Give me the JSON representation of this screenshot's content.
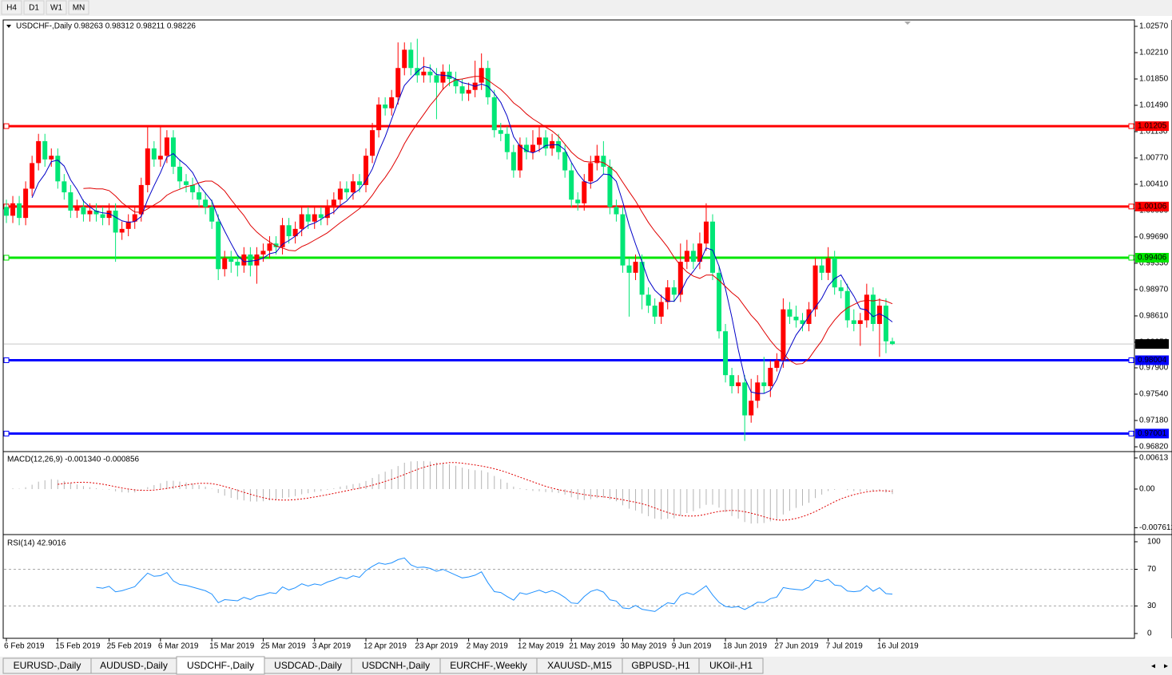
{
  "toolbar": {
    "timeframes": [
      "H4",
      "D1",
      "W1",
      "MN"
    ]
  },
  "chart_data": {
    "type": "candlestick",
    "title": "USDCHF-,Daily  0.98263 0.98312 0.98211 0.98226",
    "up_color": "#ff0000",
    "down_color": "#00e676",
    "open": [
      1.001,
      0.9998,
      1.0015,
      0.9995,
      1.0035,
      1.007,
      1.01,
      1.0075,
      1.008,
      1.0045,
      1.003,
      1.0005,
      1.001,
      1.0,
      1.0005,
      1.0,
      0.9995,
      1.0005,
      0.9975,
      0.998,
      0.999,
      1.0,
      1.004,
      1.009,
      1.0075,
      1.008,
      1.0105,
      1.0065,
      1.0045,
      1.004,
      1.003,
      1.002,
      1.001,
      0.999,
      0.9925,
      0.994,
      0.9935,
      0.993,
      0.9945,
      0.993,
      0.9945,
      0.995,
      0.996,
      0.9955,
      0.9985,
      0.997,
      0.998,
      1.0,
      0.999,
      1.0,
      0.9995,
      1.001,
      1.002,
      1.0035,
      1.003,
      1.0045,
      1.004,
      1.008,
      1.0115,
      1.015,
      1.0145,
      1.016,
      1.02,
      1.0225,
      1.02,
      1.019,
      1.0195,
      1.019,
      1.018,
      1.0195,
      1.0185,
      1.0175,
      1.0165,
      1.017,
      1.018,
      1.02,
      1.016,
      1.0115,
      1.011,
      1.0085,
      1.006,
      1.0095,
      1.0085,
      1.0095,
      1.0105,
      1.009,
      1.01,
      1.0085,
      1.006,
      1.002,
      1.0015,
      1.0045,
      1.007,
      1.008,
      1.0065,
      1.001,
      1.0,
      0.993,
      0.992,
      0.9935,
      0.989,
      0.9875,
      0.986,
      0.988,
      0.99,
      0.989,
      0.9935,
      0.995,
      0.9935,
      0.996,
      0.999,
      0.992,
      0.984,
      0.978,
      0.9765,
      0.977,
      0.9725,
      0.9745,
      0.977,
      0.9765,
      0.979,
      0.98,
      0.987,
      0.986,
      0.9855,
      0.985,
      0.987,
      0.993,
      0.992,
      0.994,
      0.99,
      0.9895,
      0.9855,
      0.985,
      0.9855,
      0.989,
      0.985,
      0.9875,
      0.98263
    ],
    "high": [
      1.002,
      1.0025,
      1.0025,
      1.0045,
      1.008,
      1.011,
      1.011,
      1.009,
      1.009,
      1.0055,
      1.004,
      1.002,
      1.002,
      1.0015,
      1.0015,
      1.001,
      1.0015,
      1.0015,
      0.999,
      1.0,
      1.001,
      1.005,
      1.012,
      1.01,
      1.012,
      1.0115,
      1.0115,
      1.0075,
      1.0055,
      1.005,
      1.004,
      1.003,
      1.002,
      1.0,
      0.995,
      0.995,
      0.9945,
      0.9955,
      0.9955,
      0.9955,
      0.996,
      0.997,
      0.997,
      0.9995,
      0.9995,
      0.999,
      1.001,
      1.001,
      1.001,
      1.001,
      1.002,
      1.003,
      1.0045,
      1.0045,
      1.0055,
      1.0055,
      1.009,
      1.0125,
      1.016,
      1.016,
      1.017,
      1.0235,
      1.0235,
      1.0235,
      1.024,
      1.0215,
      1.0205,
      1.02,
      1.0205,
      1.0205,
      1.0195,
      1.0185,
      1.018,
      1.021,
      1.022,
      1.021,
      1.017,
      1.0125,
      1.012,
      1.0095,
      1.0105,
      1.0105,
      1.0115,
      1.012,
      1.0115,
      1.011,
      1.011,
      1.0095,
      1.007,
      1.003,
      1.0055,
      1.008,
      1.0095,
      1.01,
      1.0075,
      1.002,
      1.001,
      0.994,
      0.9945,
      0.9945,
      0.99,
      0.9885,
      0.989,
      0.991,
      0.991,
      0.996,
      0.9965,
      0.996,
      0.9975,
      1.0015,
      1.0,
      0.993,
      0.985,
      0.979,
      0.978,
      0.978,
      0.9775,
      0.978,
      0.9805,
      0.98,
      0.981,
      0.9885,
      0.988,
      0.9875,
      0.9865,
      0.988,
      0.994,
      0.994,
      0.9955,
      0.995,
      0.991,
      0.9905,
      0.987,
      0.9865,
      0.9905,
      0.99,
      0.9885,
      0.9885,
      0.98312
    ],
    "low": [
      0.9988,
      0.9988,
      0.9985,
      0.9985,
      1.0025,
      1.006,
      1.0065,
      1.0065,
      1.0035,
      1.002,
      0.9995,
      0.9995,
      0.999,
      0.999,
      0.999,
      0.9985,
      0.9985,
      0.9935,
      0.9965,
      0.997,
      0.998,
      0.999,
      1.003,
      1.0065,
      1.0065,
      1.007,
      1.0055,
      1.0035,
      1.003,
      1.002,
      1.001,
      1.0,
      0.998,
      0.991,
      0.9915,
      0.992,
      0.9915,
      0.992,
      0.9915,
      0.9905,
      0.9935,
      0.994,
      0.9945,
      0.9945,
      0.996,
      0.996,
      0.997,
      0.998,
      0.998,
      0.9985,
      0.9985,
      1.0,
      1.001,
      1.002,
      1.002,
      1.003,
      1.003,
      1.007,
      1.0105,
      1.0135,
      1.0135,
      1.015,
      1.019,
      1.019,
      1.018,
      1.018,
      1.018,
      1.013,
      1.017,
      1.0175,
      1.0165,
      1.0155,
      1.0155,
      1.016,
      1.017,
      1.015,
      1.0105,
      1.01,
      1.0075,
      1.005,
      1.005,
      1.0075,
      1.0075,
      1.0085,
      1.008,
      1.008,
      1.0075,
      1.005,
      1.001,
      1.0005,
      1.0005,
      1.0035,
      1.006,
      1.0055,
      1.0,
      0.999,
      0.992,
      0.986,
      0.991,
      0.987,
      0.9865,
      0.985,
      0.985,
      0.987,
      0.988,
      0.988,
      0.9925,
      0.9925,
      0.9925,
      0.995,
      0.991,
      0.983,
      0.977,
      0.9755,
      0.9755,
      0.969,
      0.9715,
      0.9735,
      0.9755,
      0.975,
      0.9785,
      0.979,
      0.985,
      0.9845,
      0.984,
      0.984,
      0.986,
      0.991,
      0.991,
      0.989,
      0.9885,
      0.9845,
      0.984,
      0.982,
      0.9845,
      0.984,
      0.9805,
      0.981,
      0.98211
    ],
    "close": [
      0.9998,
      1.0015,
      0.9995,
      1.0035,
      1.007,
      1.01,
      1.0075,
      1.008,
      1.0045,
      1.003,
      1.0005,
      1.001,
      1.0,
      1.0005,
      1.0,
      0.9995,
      1.0005,
      0.9975,
      0.998,
      0.999,
      1.0,
      1.004,
      1.009,
      1.0075,
      1.008,
      1.0105,
      1.0065,
      1.0045,
      1.004,
      1.003,
      1.002,
      1.001,
      0.999,
      0.9925,
      0.994,
      0.9935,
      0.993,
      0.9945,
      0.993,
      0.9945,
      0.995,
      0.996,
      0.9955,
      0.9985,
      0.997,
      0.998,
      1.0,
      0.999,
      1.0,
      0.9995,
      1.001,
      1.002,
      1.0035,
      1.003,
      1.0045,
      1.004,
      1.008,
      1.0115,
      1.015,
      1.0145,
      1.016,
      1.02,
      1.0225,
      1.02,
      1.019,
      1.0195,
      1.019,
      1.018,
      1.0195,
      1.0185,
      1.0175,
      1.0165,
      1.017,
      1.018,
      1.02,
      1.016,
      1.0115,
      1.011,
      1.0085,
      1.006,
      1.0095,
      1.0085,
      1.0095,
      1.0105,
      1.009,
      1.01,
      1.0085,
      1.006,
      1.002,
      1.0015,
      1.0045,
      1.007,
      1.008,
      1.0065,
      1.001,
      1.0,
      0.993,
      0.992,
      0.9935,
      0.989,
      0.9875,
      0.986,
      0.988,
      0.99,
      0.989,
      0.9935,
      0.995,
      0.9935,
      0.996,
      0.999,
      0.992,
      0.984,
      0.978,
      0.9765,
      0.977,
      0.9725,
      0.9745,
      0.977,
      0.9765,
      0.979,
      0.98,
      0.987,
      0.986,
      0.9855,
      0.985,
      0.987,
      0.993,
      0.992,
      0.994,
      0.99,
      0.9895,
      0.9855,
      0.985,
      0.9855,
      0.989,
      0.985,
      0.9875,
      0.98263,
      0.98226
    ],
    "moving_averages": [
      {
        "period": 5,
        "color": "#0000c8"
      },
      {
        "period": 13,
        "color": "#e00000"
      }
    ],
    "ylim": [
      0.9682,
      1.0257
    ],
    "yticks": [
      {
        "value": 1.0257,
        "label": "1.02570"
      },
      {
        "value": 1.0221,
        "label": "1.02210"
      },
      {
        "value": 1.0185,
        "label": "1.01850"
      },
      {
        "value": 1.0149,
        "label": "1.01490"
      },
      {
        "value": 1.0113,
        "label": "1.01130"
      },
      {
        "value": 1.0077,
        "label": "1.00770"
      },
      {
        "value": 1.0041,
        "label": "1.00410"
      },
      {
        "value": 1.0005,
        "label": "1.00050"
      },
      {
        "value": 0.9969,
        "label": "0.99690"
      },
      {
        "value": 0.9933,
        "label": "0.99330"
      },
      {
        "value": 0.9897,
        "label": "0.98970"
      },
      {
        "value": 0.9861,
        "label": "0.98610"
      },
      {
        "value": 0.9825,
        "label": "0.98250"
      },
      {
        "value": 0.979,
        "label": "0.97900"
      },
      {
        "value": 0.9754,
        "label": "0.97540"
      },
      {
        "value": 0.9718,
        "label": "0.97180"
      },
      {
        "value": 0.9682,
        "label": "0.96820"
      }
    ],
    "levels": [
      {
        "value": 1.01205,
        "color": "#ff0000"
      },
      {
        "value": 1.00106,
        "color": "#ff0000"
      },
      {
        "value": 0.99406,
        "color": "#00e600"
      },
      {
        "value": 0.98004,
        "color": "#0000ff"
      },
      {
        "value": 0.97001,
        "color": "#0000ff"
      }
    ],
    "bid_line": {
      "value": 0.98226,
      "color": "#c8c8c8"
    },
    "x_labels": [
      "6 Feb 2019",
      "15 Feb 2019",
      "25 Feb 2019",
      "6 Mar 2019",
      "15 Mar 2019",
      "25 Mar 2019",
      "3 Apr 2019",
      "12 Apr 2019",
      "23 Apr 2019",
      "2 May 2019",
      "12 May 2019",
      "21 May 2019",
      "30 May 2019",
      "9 Jun 2019",
      "18 Jun 2019",
      "27 Jun 2019",
      "7 Jul 2019",
      "16 Jul 2019"
    ],
    "macd": {
      "title": "MACD(12,26,9) -0.001340 -0.000856",
      "periods": [
        12,
        26,
        9
      ],
      "hist_color": "#b4b4b4",
      "signal_color": "#e00000",
      "ylim": [
        -0.00865,
        0.00707
      ],
      "yticks": [
        0.00613,
        {
          "value": 0,
          "label": "0.00"
        },
        -0.007612
      ]
    },
    "rsi": {
      "title": "RSI(14) 42.9016",
      "period": 14,
      "color": "#1e90ff",
      "ylim": [
        0,
        100
      ],
      "yticks": [
        100,
        70,
        30,
        0
      ],
      "levels": [
        70,
        30
      ]
    }
  },
  "tabs": [
    "EURUSD-,Daily",
    "AUDUSD-,Daily",
    "USDCHF-,Daily",
    "USDCAD-,Daily",
    "USDCNH-,Daily",
    "EURCHF-,Weekly",
    "XAUUSD-,M15",
    "GBPUSD-,H1",
    "UKOil-,H1"
  ],
  "active_tab": 2
}
